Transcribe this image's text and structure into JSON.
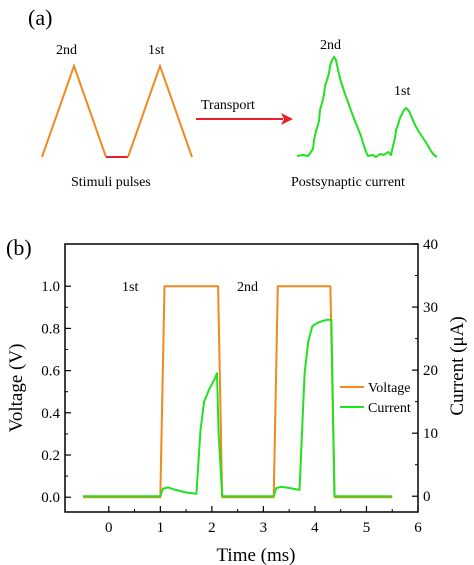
{
  "panel_a": {
    "label": "(a)",
    "pulse_labels": [
      "2nd",
      "1st"
    ],
    "stimuli_label": "Stimuli pulses",
    "arrow_label": "Transport",
    "current_labels": [
      "2nd",
      "1st"
    ],
    "postsynaptic_label": "Postsynaptic current",
    "colors": {
      "pulse": "#f08a1e",
      "gap": "#e8202a",
      "arrow": "#e8202a",
      "current": "#22e022"
    }
  },
  "panel_b": {
    "label": "(b)",
    "pulse_labels": [
      "1st",
      "2nd"
    ]
  },
  "chart_data": {
    "type": "line",
    "xlabel": "Time (ms)",
    "ylabel": "Voltage (V)",
    "ylabel_right": "Current (μA)",
    "xlim": [
      -0.85,
      6
    ],
    "ylim": [
      -0.07,
      1.2
    ],
    "ylim_right": [
      -2.5,
      40
    ],
    "x_ticks": [
      "0",
      "1",
      "2",
      "3",
      "4",
      "5",
      "6"
    ],
    "y_ticks": [
      "0.0",
      "0.2",
      "0.4",
      "0.6",
      "0.8",
      "1.0"
    ],
    "y_right_ticks": [
      "0",
      "10",
      "20",
      "30",
      "40"
    ],
    "grid": false,
    "legend_position": "right",
    "series": [
      {
        "name": "Voltage",
        "axis": "left",
        "color": "#f08a1e",
        "x": [
          -0.5,
          1.0,
          1.08,
          2.12,
          2.2,
          3.2,
          3.28,
          4.3,
          4.38,
          5.5
        ],
        "y": [
          0.0,
          0.0,
          1.0,
          1.0,
          0.0,
          0.0,
          1.0,
          1.0,
          0.0,
          0.0
        ]
      },
      {
        "name": "Current",
        "axis": "right",
        "color": "#22e022",
        "x": [
          -0.5,
          1.0,
          1.05,
          1.15,
          1.3,
          1.5,
          1.7,
          1.78,
          1.85,
          1.95,
          2.05,
          2.1,
          2.13,
          2.2,
          3.2,
          3.25,
          3.35,
          3.5,
          3.7,
          3.8,
          3.87,
          3.95,
          4.05,
          4.15,
          4.25,
          4.32,
          4.38,
          5.5
        ],
        "y": [
          0,
          0,
          1.2,
          1.4,
          1.0,
          0.6,
          0.4,
          10.5,
          15.0,
          17.0,
          18.5,
          19.5,
          10.0,
          0,
          0,
          1.3,
          1.5,
          1.3,
          1.0,
          19.5,
          24.5,
          27.0,
          27.5,
          27.8,
          28.0,
          28.0,
          0,
          0
        ]
      }
    ]
  }
}
